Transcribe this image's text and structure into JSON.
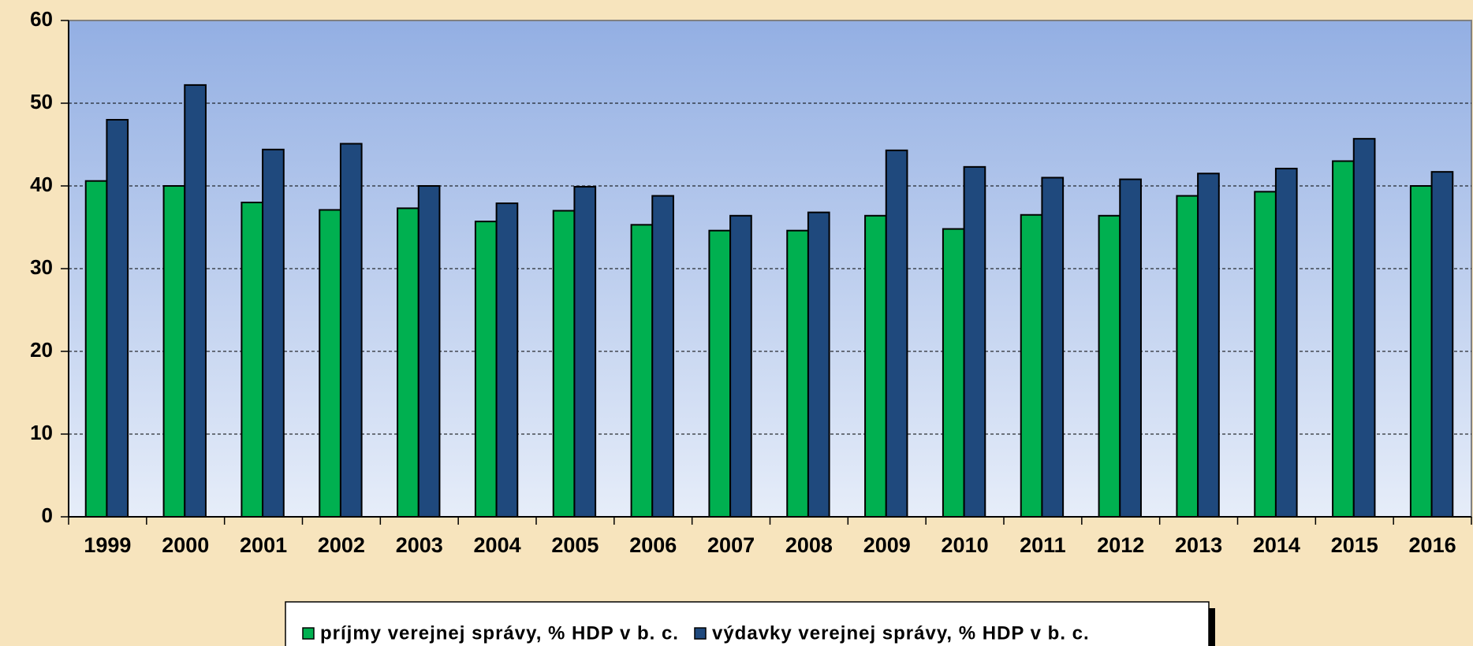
{
  "chart_data": {
    "type": "bar",
    "categories": [
      "1999",
      "2000",
      "2001",
      "2002",
      "2003",
      "2004",
      "2005",
      "2006",
      "2007",
      "2008",
      "2009",
      "2010",
      "2011",
      "2012",
      "2013",
      "2014",
      "2015",
      "2016"
    ],
    "series": [
      {
        "name": "príjmy verejnej správy, % HDP v b. c.",
        "color": "#00b050",
        "values": [
          40.6,
          40.0,
          38.0,
          37.1,
          37.3,
          35.7,
          37.0,
          35.3,
          34.6,
          34.6,
          36.4,
          34.8,
          36.5,
          36.4,
          38.8,
          39.3,
          43.0,
          40.0
        ]
      },
      {
        "name": "výdavky verejnej správy, % HDP v b. c.",
        "color": "#1f497d",
        "values": [
          48.0,
          52.2,
          44.4,
          45.1,
          40.0,
          37.9,
          39.9,
          38.8,
          36.4,
          36.8,
          44.3,
          42.3,
          41.0,
          40.8,
          41.5,
          42.1,
          45.7,
          41.7
        ]
      }
    ],
    "ylim": [
      0,
      60
    ],
    "yticks": [
      0,
      10,
      20,
      30,
      40,
      50,
      60
    ],
    "grid": true,
    "legend": "bottom"
  }
}
